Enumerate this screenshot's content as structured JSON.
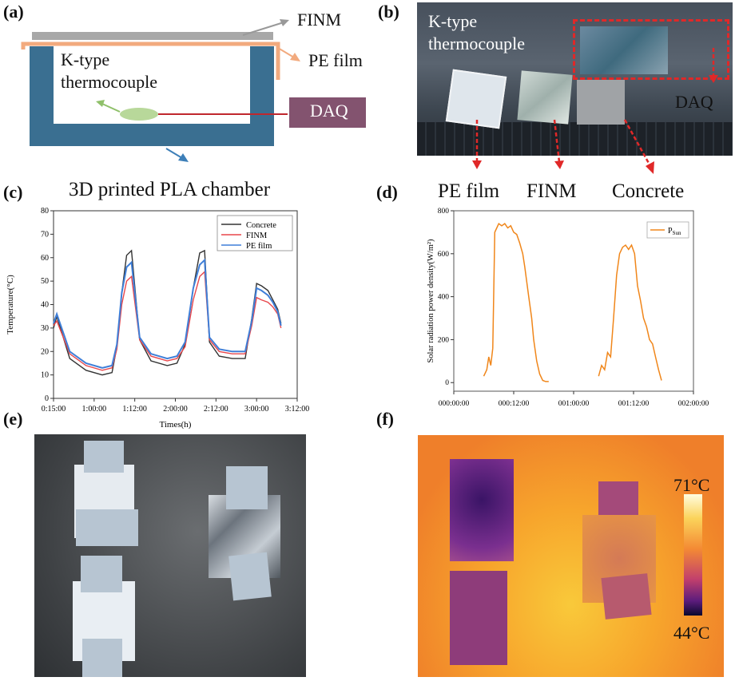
{
  "panels": {
    "a": {
      "label": "(a)",
      "finm": "FINM",
      "pe_film": "PE film",
      "thermo_line1": "K-type",
      "thermo_line2": "thermocouple",
      "daq": "DAQ",
      "chamber": "3D printed PLA chamber"
    },
    "b": {
      "label": "(b)",
      "thermo_line1": "K-type",
      "thermo_line2": "thermocouple",
      "daq": "DAQ",
      "pe_film": "PE film",
      "finm": "FINM",
      "concrete": "Concrete"
    },
    "c": {
      "label": "(c)"
    },
    "d": {
      "label": "(d)"
    },
    "e": {
      "label": "(e)"
    },
    "f": {
      "label": "(f)",
      "scale_max": "71°C",
      "scale_min": "44°C"
    }
  },
  "chart_data": [
    {
      "id": "c",
      "type": "line",
      "title": "",
      "xlabel": "Times(h)",
      "ylabel": "Temperature(°C)",
      "xlim": [
        0,
        15
      ],
      "ylim": [
        0,
        80
      ],
      "yticks": [
        0,
        10,
        20,
        30,
        40,
        50,
        60,
        70,
        80
      ],
      "xtick_labels": [
        "0:15:00",
        "1:00:00",
        "1:12:00",
        "2:00:00",
        "2:12:00",
        "3:00:00",
        "3:12:00"
      ],
      "x": [
        0,
        0.2,
        1,
        2,
        3,
        3.6,
        3.9,
        4.2,
        4.5,
        4.8,
        5.3,
        6,
        7,
        7.6,
        8.1,
        8.6,
        9.0,
        9.3,
        9.6,
        10.2,
        11,
        11.8,
        12.2,
        12.5,
        12.8,
        13.2,
        13.5,
        13.8,
        14.0
      ],
      "series": [
        {
          "name": "Concrete",
          "color": "#333333",
          "values": [
            30,
            35,
            17,
            12,
            10,
            11,
            22,
            45,
            61,
            63,
            25,
            16,
            14,
            15,
            23,
            47,
            62,
            63,
            24,
            18,
            17,
            17,
            34,
            49,
            48,
            46,
            42,
            38,
            32
          ]
        },
        {
          "name": "FINM",
          "color": "#e8474c",
          "values": [
            31,
            33,
            19,
            14,
            12,
            13,
            21,
            40,
            50,
            52,
            25,
            18,
            16,
            17,
            22,
            42,
            52,
            54,
            25,
            20,
            19,
            19,
            31,
            43,
            42,
            41,
            39,
            36,
            30
          ]
        },
        {
          "name": "PE film",
          "color": "#3f7fd8",
          "values": [
            32,
            36,
            20,
            15,
            13,
            14,
            23,
            45,
            56,
            58,
            26,
            19,
            17,
            18,
            24,
            47,
            57,
            59,
            26,
            21,
            20,
            20,
            33,
            47,
            46,
            44,
            41,
            37,
            31
          ]
        }
      ]
    },
    {
      "id": "d",
      "type": "line",
      "title": "",
      "xlabel": "",
      "ylabel": "Solar radiation power density(W/m²)",
      "xlim": [
        0,
        24
      ],
      "ylim": [
        -40,
        800
      ],
      "yticks": [
        0,
        200,
        400,
        600,
        800
      ],
      "xtick_labels": [
        "000:00:00",
        "000:12:00",
        "001:00:00",
        "001:12:00",
        "002:00:00"
      ],
      "series": [
        {
          "name": "P_Sun",
          "legend_main": "P",
          "legend_sub": "Sun",
          "color": "#f0861a",
          "segments": [
            {
              "x": [
                3.0,
                3.3,
                3.5,
                3.7,
                3.9,
                4.1,
                4.3,
                4.5,
                4.8,
                5.1,
                5.4,
                5.7,
                6.0,
                6.3,
                6.6,
                6.9,
                7.1,
                7.3,
                7.5,
                7.8,
                8.0,
                8.3,
                8.6,
                8.9,
                9.2,
                9.5
              ],
              "values": [
                30,
                60,
                120,
                80,
                160,
                700,
                720,
                740,
                730,
                740,
                720,
                730,
                700,
                690,
                650,
                600,
                540,
                470,
                400,
                300,
                200,
                100,
                40,
                10,
                5,
                5
              ]
            },
            {
              "x": [
                14.5,
                14.8,
                15.1,
                15.4,
                15.7,
                16.0,
                16.3,
                16.6,
                16.9,
                17.2,
                17.5,
                17.8,
                18.1,
                18.4,
                18.7,
                19.0,
                19.3,
                19.6,
                19.9,
                20.2,
                20.5,
                20.8
              ],
              "values": [
                30,
                80,
                60,
                140,
                120,
                300,
                500,
                600,
                630,
                640,
                620,
                640,
                600,
                450,
                380,
                300,
                260,
                200,
                180,
                120,
                60,
                10
              ]
            }
          ]
        }
      ]
    }
  ]
}
